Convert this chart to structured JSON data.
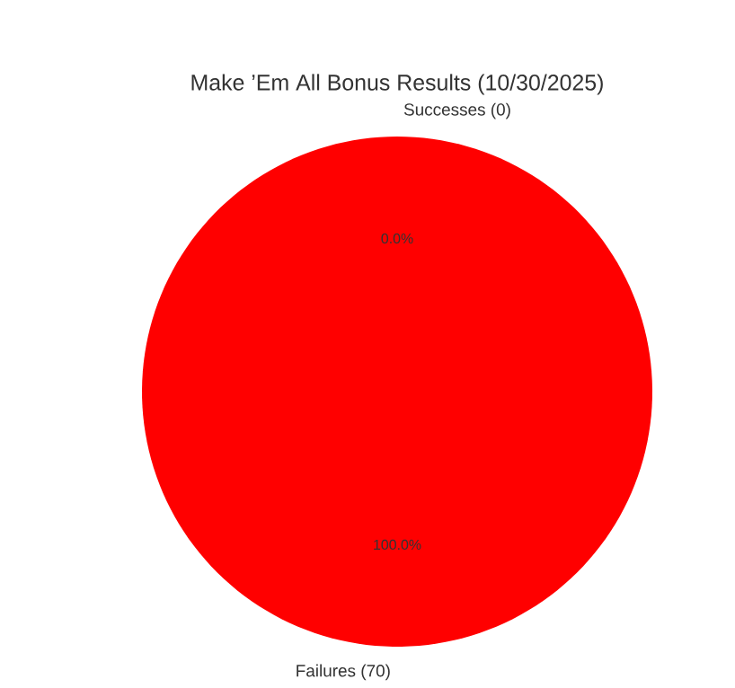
{
  "chart_data": {
    "type": "pie",
    "title": "Make ’Em All Bonus Results (10/30/2025)",
    "categories": [
      "Successes (0)",
      "Failures (70)"
    ],
    "values": [
      0,
      100
    ],
    "colors": [
      "#2ca02c",
      "#ff0000"
    ],
    "value_labels": [
      "0.0%",
      "100.0%"
    ]
  }
}
